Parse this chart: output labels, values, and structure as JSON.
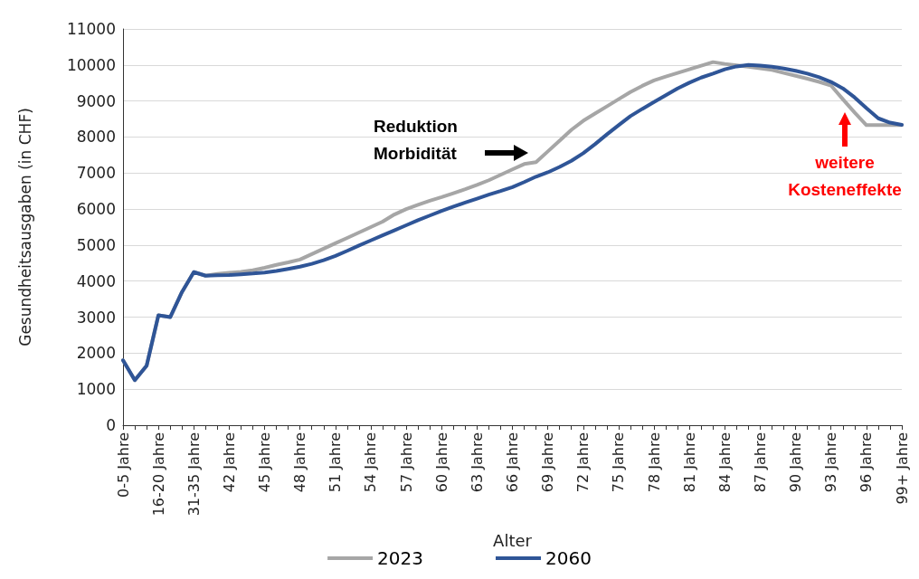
{
  "chart_data": {
    "type": "line",
    "categories": [
      "0-5 Jahre",
      null,
      null,
      "16-20 Jahre",
      null,
      null,
      "31-35 Jahre",
      null,
      null,
      "42 Jahre",
      null,
      null,
      "45 Jahre",
      null,
      null,
      "48 Jahre",
      null,
      null,
      "51 Jahre",
      null,
      null,
      "54 Jahre",
      null,
      null,
      "57 Jahre",
      null,
      null,
      "60 Jahre",
      null,
      null,
      "63 Jahre",
      null,
      null,
      "66 Jahre",
      null,
      null,
      "69 Jahre",
      null,
      null,
      "72 Jahre",
      null,
      null,
      "75 Jahre",
      null,
      null,
      "78 Jahre",
      null,
      null,
      "81 Jahre",
      null,
      null,
      "84 Jahre",
      null,
      null,
      "87 Jahre",
      null,
      null,
      "90 Jahre",
      null,
      null,
      "93 Jahre",
      null,
      null,
      "96 Jahre",
      null,
      null,
      "99+ Jahre"
    ],
    "series": [
      {
        "name": "2023",
        "color": "#a6a6a6",
        "values": [
          1800,
          1250,
          1650,
          3050,
          3000,
          3700,
          4250,
          4150,
          4200,
          4230,
          4260,
          4300,
          4370,
          4450,
          4520,
          4600,
          4750,
          4900,
          5050,
          5200,
          5350,
          5500,
          5650,
          5850,
          6000,
          6120,
          6230,
          6330,
          6440,
          6550,
          6670,
          6800,
          6950,
          7100,
          7250,
          7300,
          7600,
          7900,
          8200,
          8450,
          8650,
          8850,
          9050,
          9250,
          9420,
          9570,
          9680,
          9780,
          9880,
          9980,
          10080,
          10030,
          9990,
          9950,
          9910,
          9860,
          9780,
          9700,
          9620,
          9530,
          9430,
          9050,
          8680,
          8330,
          8330,
          8330,
          8330
        ]
      },
      {
        "name": "2060",
        "color": "#2f5597",
        "values": [
          1800,
          1250,
          1650,
          3050,
          3000,
          3700,
          4250,
          4150,
          4160,
          4170,
          4190,
          4210,
          4240,
          4280,
          4340,
          4400,
          4480,
          4580,
          4700,
          4840,
          4990,
          5130,
          5270,
          5410,
          5550,
          5690,
          5820,
          5950,
          6070,
          6180,
          6290,
          6400,
          6500,
          6610,
          6750,
          6900,
          7020,
          7170,
          7340,
          7550,
          7800,
          8070,
          8330,
          8580,
          8780,
          8970,
          9160,
          9350,
          9510,
          9650,
          9760,
          9880,
          9960,
          10000,
          9980,
          9950,
          9900,
          9840,
          9760,
          9660,
          9530,
          9350,
          9100,
          8800,
          8520,
          8400,
          8340
        ]
      }
    ],
    "xlabel": "Alter",
    "ylabel": "Gesundheitsausgaben (in CHF)",
    "ylim": [
      0,
      11000
    ],
    "yticks": [
      0,
      1000,
      2000,
      3000,
      4000,
      5000,
      6000,
      7000,
      8000,
      9000,
      10000,
      11000
    ],
    "grid": "y",
    "legend": "bottom",
    "marker": "none",
    "line_style": "solid",
    "annotations": [
      "Reduktion\nMorbidität",
      "weitere\nKosteneffekte"
    ]
  }
}
